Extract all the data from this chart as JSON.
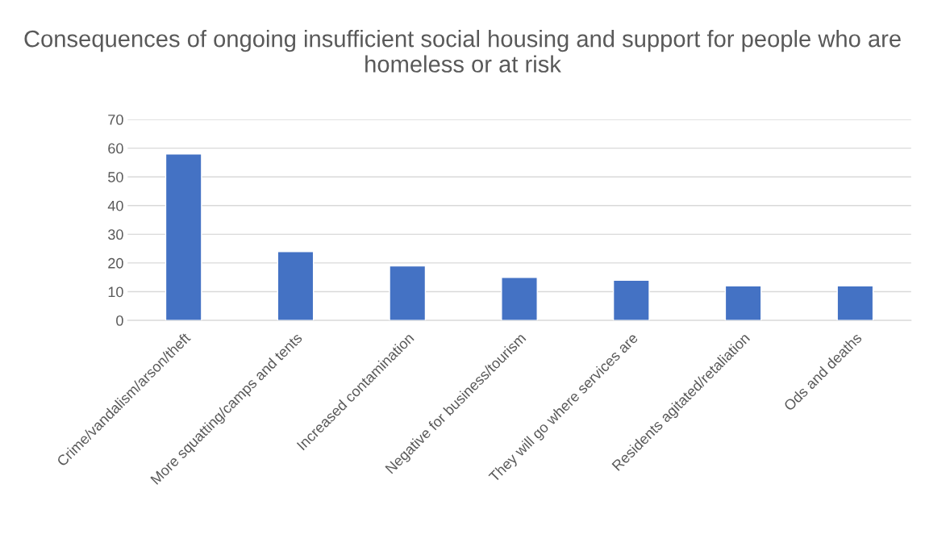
{
  "chart_data": {
    "type": "bar",
    "title": "Consequences of ongoing insufficient social housing and support for people who are homeless or at risk",
    "categories": [
      "Crime/vandalism/arson/theft",
      "More squatting/camps and tents",
      "Increased contamination",
      "Negative for business/tourism",
      "They will go where services are",
      "Residents agitated/retaliation",
      "Ods and deaths"
    ],
    "values": [
      58,
      24,
      19,
      15,
      14,
      12,
      12
    ],
    "color": "#4472c4",
    "ylim": [
      0,
      70
    ],
    "yticks": [
      0,
      10,
      20,
      30,
      40,
      50,
      60,
      70
    ],
    "grid": "y"
  }
}
